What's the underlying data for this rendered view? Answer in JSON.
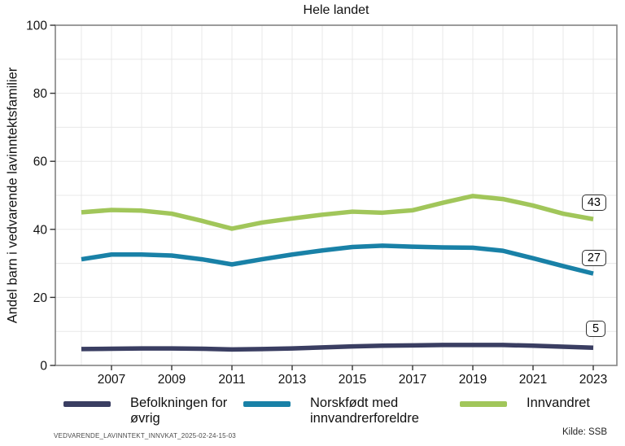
{
  "title": "Hele landet",
  "y_axis_label": "Andel barn i vedvarende lavinntektsfamilier",
  "footnote": "VEDVARENDE_LAVINNTEKT_INNVKAT_2025-02-24-15-03",
  "source": "Kilde: SSB",
  "colors": {
    "befolkningen": "#3a3e62",
    "norskfodt": "#1981a7",
    "innvandret": "#a1c65a",
    "grid": "#e8e8e8",
    "plot_border": "#8a8a8a",
    "tick": "#333333"
  },
  "legend": {
    "items": [
      {
        "label": "Befolkningen for øvrig",
        "series": "befolkningen"
      },
      {
        "label": "Norskfødt med innvandrerforeldre",
        "series": "norskfodt"
      },
      {
        "label": "Innvandret",
        "series": "innvandret"
      }
    ]
  },
  "end_labels": {
    "innvandret": "43",
    "norskfodt": "27",
    "befolkningen": "5"
  },
  "chart_data": {
    "type": "line",
    "title": "Hele landet",
    "ylabel": "Andel barn i vedvarende lavinntektsfamilier",
    "ylim": [
      0,
      100
    ],
    "y_ticks": [
      0,
      20,
      40,
      60,
      80,
      100
    ],
    "x_ticks": [
      2007,
      2009,
      2011,
      2013,
      2015,
      2017,
      2019,
      2021,
      2023
    ],
    "grid": true,
    "legend_position": "bottom",
    "x": [
      2006,
      2007,
      2008,
      2009,
      2010,
      2011,
      2012,
      2013,
      2014,
      2015,
      2016,
      2017,
      2018,
      2019,
      2020,
      2021,
      2022,
      2023
    ],
    "series": [
      {
        "name": "Befolkningen for øvrig",
        "color": "#3a3e62",
        "values": [
          4.8,
          4.9,
          5.0,
          5.0,
          4.9,
          4.7,
          4.8,
          5.0,
          5.3,
          5.6,
          5.8,
          5.9,
          6.0,
          6.0,
          6.0,
          5.8,
          5.5,
          5.2
        ]
      },
      {
        "name": "Norskfødt med innvandrerforeldre",
        "color": "#1981a7",
        "values": [
          31.2,
          32.6,
          32.6,
          32.3,
          31.2,
          29.7,
          31.2,
          32.6,
          33.8,
          34.8,
          35.2,
          34.9,
          34.7,
          34.6,
          33.7,
          31.5,
          29.2,
          27.0
        ]
      },
      {
        "name": "Innvandret",
        "color": "#a1c65a",
        "values": [
          45.0,
          45.7,
          45.5,
          44.6,
          42.5,
          40.2,
          42.0,
          43.2,
          44.3,
          45.2,
          44.9,
          45.6,
          47.8,
          49.8,
          48.9,
          47.0,
          44.6,
          43.0
        ]
      }
    ],
    "end_labels": [
      43,
      27,
      5
    ]
  }
}
